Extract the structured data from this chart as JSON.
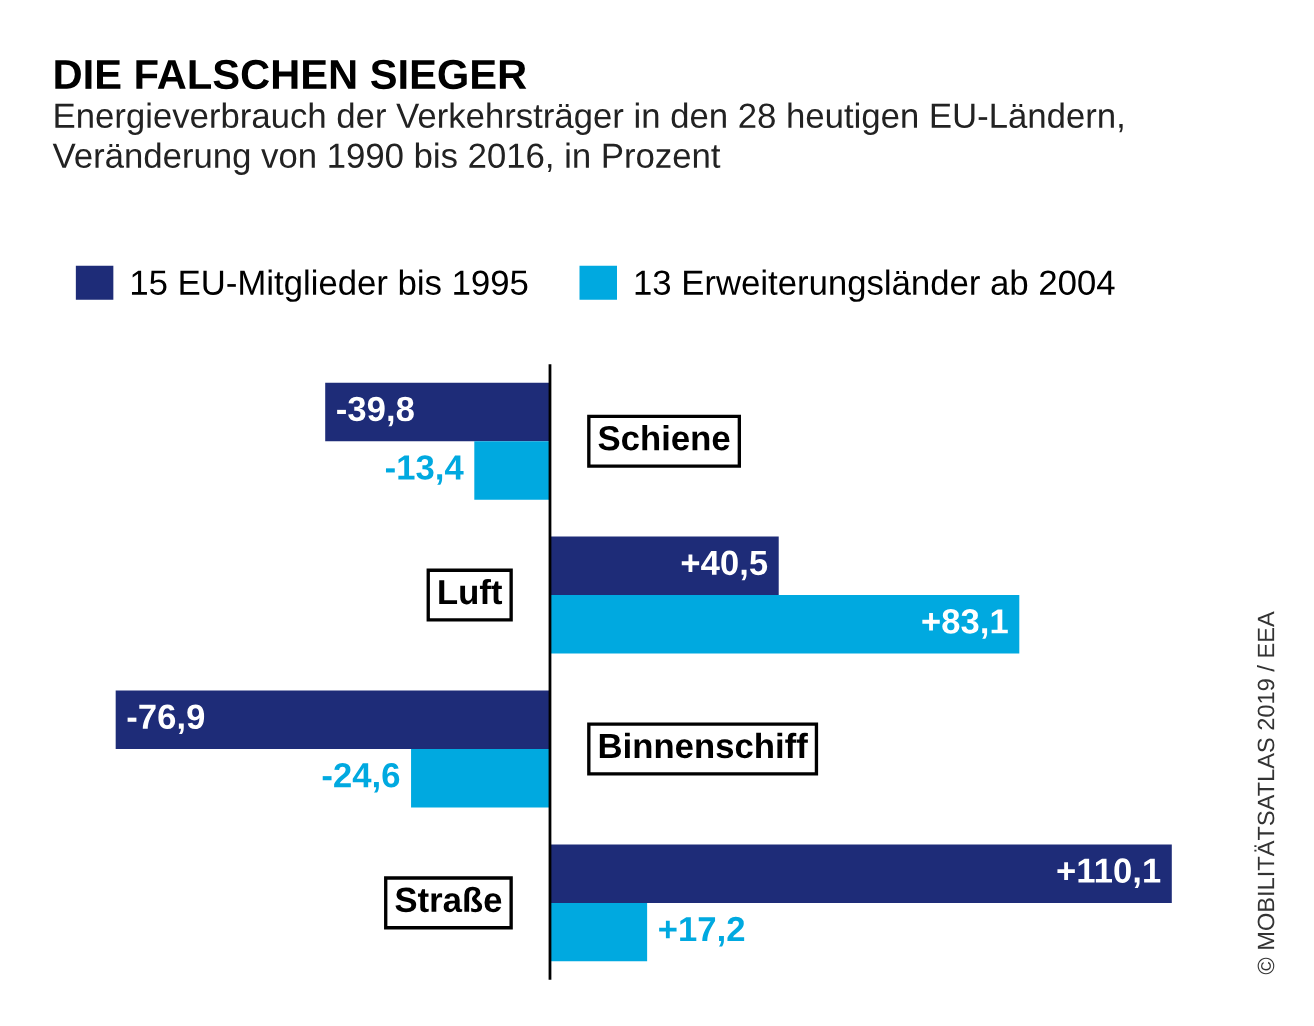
{
  "chart_data": {
    "type": "bar",
    "orientation": "horizontal",
    "title": "DIE FALSCHEN SIEGER",
    "subtitle": "Energieverbrauch der Verkehrsträger in den 28 heutigen EU-Ländern,\nVeränderung von 1990 bis 2016, in Prozent",
    "categories": [
      "Schiene",
      "Luft",
      "Binnenschiff",
      "Straße"
    ],
    "series": [
      {
        "name": "15 EU-Mitglieder bis 1995",
        "color": "#1e2c78",
        "values": [
          -39.8,
          40.5,
          -76.9,
          110.1
        ],
        "value_labels": [
          "-39,8",
          "+40,5",
          "-76,9",
          "+110,1"
        ]
      },
      {
        "name": "13 Erweiterungsländer ab 2004",
        "color": "#00a9e0",
        "values": [
          -13.4,
          83.1,
          -24.6,
          17.2
        ],
        "value_labels": [
          "-13,4",
          "+83,1",
          "-24,6",
          "+17,2"
        ]
      }
    ],
    "legend": "top left",
    "annotations": [
      "© MOBILITÄTSATLAS 2019 / EEA"
    ]
  }
}
